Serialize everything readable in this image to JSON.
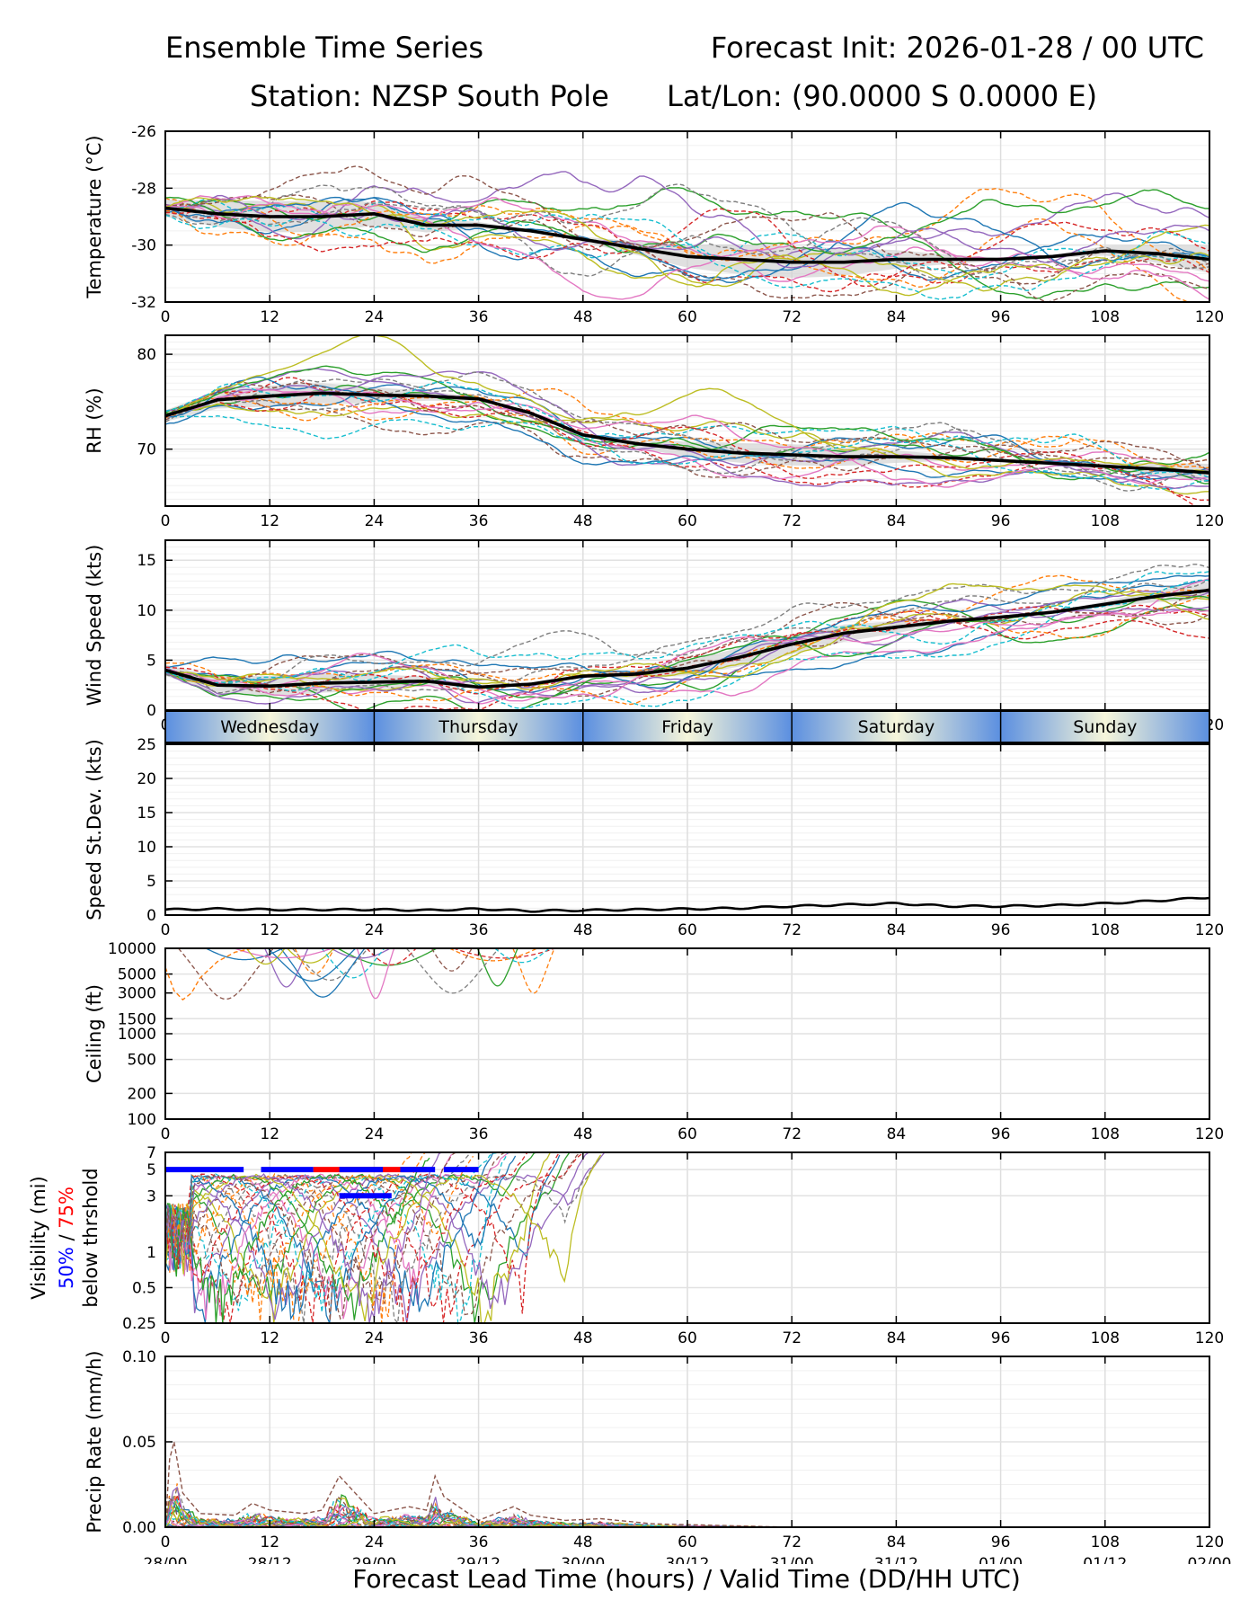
{
  "header": {
    "title_left": "Ensemble Time Series",
    "title_right": "Forecast Init: 2026-01-28 / 00 UTC",
    "station": "Station: NZSP South Pole",
    "latlon": "Lat/Lon: (90.0000 S 0.0000 E)"
  },
  "xaxis": {
    "label": "Forecast Lead Time (hours) / Valid Time (DD/HH UTC)",
    "lead_ticks": [
      "0",
      "12",
      "24",
      "36",
      "48",
      "60",
      "72",
      "84",
      "96",
      "108",
      "120"
    ],
    "valid_ticks": [
      "28/00",
      "28/12",
      "29/00",
      "29/12",
      "30/00",
      "30/12",
      "31/00",
      "31/12",
      "01/00",
      "01/12",
      "02/00"
    ]
  },
  "day_band": [
    "Wednesday",
    "Thursday",
    "Friday",
    "Saturday",
    "Sunday"
  ],
  "colors": {
    "members": [
      "#1f77b4",
      "#ff7f0e",
      "#2ca02c",
      "#d62728",
      "#9467bd",
      "#8c564b",
      "#e377c2",
      "#7f7f7f",
      "#bcbd22",
      "#17becf"
    ],
    "mean": "#000000",
    "spread": "#d3d3d3",
    "day_blue": "#5b8fe0",
    "day_cream": "#f6f6da",
    "p50": "#0000ff",
    "p75": "#ff0000"
  },
  "chart_data": [
    {
      "type": "line",
      "id": "temp",
      "ylabel": "Temperature (°C)",
      "ylim": [
        -32,
        -26
      ],
      "yticks": [
        "-32",
        "-30",
        "-28",
        "-26"
      ],
      "xlim": [
        0,
        120
      ],
      "series": [
        {
          "name": "ensemble mean",
          "x": [
            0,
            6,
            12,
            18,
            24,
            30,
            36,
            42,
            48,
            54,
            60,
            66,
            72,
            78,
            84,
            90,
            96,
            102,
            108,
            114,
            120
          ],
          "values": [
            -28.7,
            -28.9,
            -29.0,
            -29.0,
            -28.9,
            -29.3,
            -29.3,
            -29.5,
            -29.8,
            -30.1,
            -30.4,
            -30.5,
            -30.6,
            -30.6,
            -30.5,
            -30.5,
            -30.5,
            -30.4,
            -30.2,
            -30.3,
            -30.5
          ]
        }
      ]
    },
    {
      "type": "line",
      "id": "rh",
      "ylabel": "RH (%)",
      "ylim": [
        64,
        82
      ],
      "yticks": [
        "70",
        "80"
      ],
      "xlim": [
        0,
        120
      ],
      "series": [
        {
          "name": "ensemble mean",
          "x": [
            0,
            6,
            12,
            18,
            24,
            30,
            36,
            42,
            48,
            54,
            60,
            66,
            72,
            78,
            84,
            90,
            96,
            102,
            108,
            114,
            120
          ],
          "values": [
            73.5,
            75.2,
            75.6,
            75.9,
            75.7,
            75.6,
            75.3,
            73.8,
            71.5,
            70.6,
            70.0,
            69.6,
            69.4,
            69.2,
            69.2,
            69.1,
            68.8,
            68.5,
            68.2,
            67.9,
            67.5
          ]
        }
      ]
    },
    {
      "type": "line",
      "id": "wind",
      "ylabel": "Wind Speed (kts)",
      "ylim": [
        0,
        17
      ],
      "yticks": [
        "0",
        "5",
        "10",
        "15"
      ],
      "xlim": [
        0,
        120
      ],
      "series": [
        {
          "name": "ensemble mean",
          "x": [
            0,
            6,
            12,
            18,
            24,
            30,
            36,
            42,
            48,
            54,
            60,
            66,
            72,
            78,
            84,
            90,
            96,
            102,
            108,
            114,
            120
          ],
          "values": [
            4.0,
            2.5,
            2.4,
            2.7,
            2.8,
            2.9,
            2.3,
            2.6,
            3.4,
            3.6,
            4.2,
            5.3,
            6.6,
            7.7,
            8.3,
            8.9,
            9.3,
            9.8,
            10.6,
            11.4,
            12.0
          ]
        }
      ]
    },
    {
      "type": "line",
      "id": "stdev",
      "ylabel": "Speed St.Dev. (kts)",
      "ylim": [
        0,
        25
      ],
      "yticks": [
        "0",
        "5",
        "10",
        "15",
        "20",
        "25"
      ],
      "xlim": [
        0,
        120
      ],
      "series": [
        {
          "name": "speed stdev",
          "x": [
            0,
            6,
            12,
            18,
            24,
            30,
            36,
            42,
            48,
            54,
            60,
            66,
            72,
            78,
            84,
            90,
            96,
            102,
            108,
            114,
            120
          ],
          "values": [
            0.8,
            0.9,
            0.8,
            0.8,
            0.8,
            0.7,
            0.9,
            0.6,
            0.7,
            0.8,
            0.9,
            1.0,
            1.3,
            1.5,
            1.7,
            1.3,
            1.3,
            1.4,
            1.7,
            2.1,
            2.6
          ]
        }
      ]
    },
    {
      "type": "line",
      "id": "ceiling",
      "ylabel": "Ceiling (ft)",
      "yscale": "log",
      "ylim": [
        100,
        10000
      ],
      "yticks": [
        "100",
        "200",
        "500",
        "1000",
        "1500",
        "3000",
        "5000",
        "10000"
      ],
      "xlim": [
        0,
        120
      ],
      "series": [
        {
          "name": "lowest member",
          "x": [
            0,
            1,
            2,
            3,
            4,
            6,
            8,
            10
          ],
          "values": [
            6000,
            3200,
            2500,
            3000,
            4500,
            7000,
            9000,
            10000
          ]
        }
      ]
    },
    {
      "type": "line",
      "id": "vis",
      "ylabel": "Visibility (mi)",
      "ylabel_blue": "50%",
      "ylabel_sep": " / ",
      "ylabel_red": "75%",
      "ylabel2": "below thrshold",
      "yscale": "log",
      "ylim": [
        0.25,
        7
      ],
      "yticks": [
        "0.25",
        "0.5",
        "1",
        "3",
        "5",
        "7"
      ],
      "xlim": [
        0,
        120
      ],
      "threshold_50": {
        "x_start": [
          0,
          11,
          20,
          27,
          32
        ],
        "x_end": [
          9,
          17,
          25,
          31,
          36
        ],
        "value": 5
      },
      "threshold_75": {
        "x_start": [
          17
        ],
        "x_end": [
          30
        ],
        "value": 5
      },
      "threshold_50_low": {
        "x_start": [
          20
        ],
        "x_end": [
          26
        ],
        "value": 3
      }
    },
    {
      "type": "line",
      "id": "precip",
      "ylabel": "Precip Rate (mm/h)",
      "ylim": [
        0,
        0.1
      ],
      "yticks": [
        "0.00",
        "0.05",
        "0.10"
      ],
      "xlim": [
        0,
        120
      ],
      "series": [
        {
          "name": "max member",
          "x": [
            0,
            0.5,
            1,
            2,
            4,
            8,
            10,
            12,
            16,
            18,
            20,
            24,
            28,
            30,
            31,
            32,
            36,
            40,
            42,
            46,
            50,
            56,
            64,
            72
          ],
          "values": [
            0.0,
            0.04,
            0.05,
            0.02,
            0.008,
            0.007,
            0.014,
            0.01,
            0.008,
            0.01,
            0.03,
            0.008,
            0.012,
            0.01,
            0.03,
            0.018,
            0.004,
            0.012,
            0.007,
            0.004,
            0.005,
            0.002,
            0.001,
            0.0
          ]
        }
      ]
    }
  ]
}
